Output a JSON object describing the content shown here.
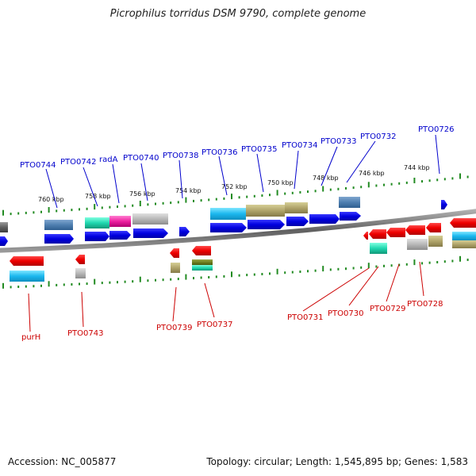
{
  "title": "Picrophilus torridus DSM 9790, complete genome",
  "footer": {
    "accession": "Accession: NC_005877",
    "summary": "Topology: circular; Length: 1,545,895 bp; Genes: 1,583"
  },
  "colors": {
    "top_labels": "#0000cc",
    "bottom_labels": "#cc0000",
    "forward_cds": "#0000ee",
    "reverse_cds": "#ee0000",
    "backbone": "#808080",
    "ticks": "#228b22"
  },
  "scale_labels": [
    "760 kbp",
    "758 kbp",
    "756 kbp",
    "754 kbp",
    "752 kbp",
    "750 kbp",
    "748 kbp",
    "746 kbp",
    "744 kbp"
  ],
  "top_gene_labels": [
    "PTO0744",
    "PTO0742",
    "radA",
    "PTO0740",
    "PTO0738",
    "PTO0736",
    "PTO0735",
    "PTO0734",
    "PTO0733",
    "PTO0732",
    "PTO0726"
  ],
  "bottom_gene_labels": [
    "purH",
    "PTO0743",
    "PTO0739",
    "PTO0737",
    "PTO0731",
    "PTO0730",
    "PTO0729",
    "PTO0728"
  ]
}
